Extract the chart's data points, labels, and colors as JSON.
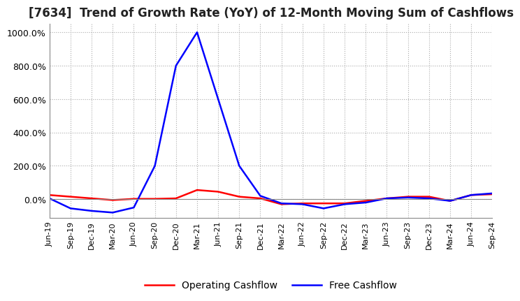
{
  "title": "[7634]  Trend of Growth Rate (YoY) of 12-Month Moving Sum of Cashflows",
  "title_fontsize": 12,
  "background_color": "#ffffff",
  "grid_color": "#aaaaaa",
  "ylim": [
    -110,
    1050
  ],
  "yticks": [
    0,
    200,
    400,
    600,
    800,
    1000
  ],
  "ytick_labels": [
    "0.0%",
    "200.0%",
    "400.0%",
    "600.0%",
    "800.0%",
    "1000.0%"
  ],
  "x_labels": [
    "Jun-19",
    "Sep-19",
    "Dec-19",
    "Mar-20",
    "Jun-20",
    "Sep-20",
    "Dec-20",
    "Mar-21",
    "Jun-21",
    "Sep-21",
    "Dec-21",
    "Mar-22",
    "Jun-22",
    "Sep-22",
    "Dec-22",
    "Mar-23",
    "Jun-23",
    "Sep-23",
    "Dec-23",
    "Mar-24",
    "Jun-24",
    "Sep-24"
  ],
  "operating_cashflow": [
    25,
    15,
    5,
    -5,
    2,
    2,
    5,
    55,
    45,
    15,
    5,
    -30,
    -25,
    -25,
    -25,
    -10,
    5,
    15,
    15,
    -10,
    25,
    30
  ],
  "free_cashflow": [
    5,
    -55,
    -70,
    -80,
    -50,
    200,
    800,
    1000,
    600,
    200,
    20,
    -25,
    -30,
    -55,
    -30,
    -20,
    5,
    10,
    5,
    -10,
    25,
    35
  ],
  "operating_color": "#ff0000",
  "free_color": "#0000ff",
  "legend_labels": [
    "Operating Cashflow",
    "Free Cashflow"
  ]
}
